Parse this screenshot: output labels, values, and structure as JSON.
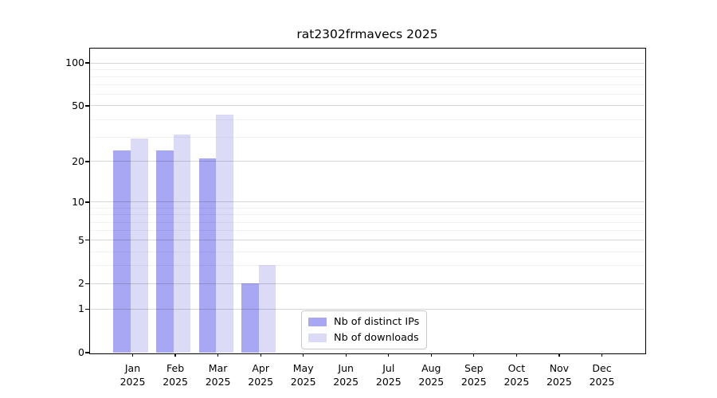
{
  "chart_data": {
    "type": "bar",
    "title": "rat2302frmavecs 2025",
    "x_categories": [
      "Jan",
      "Feb",
      "Mar",
      "Apr",
      "May",
      "Jun",
      "Jul",
      "Aug",
      "Sep",
      "Oct",
      "Nov",
      "Dec"
    ],
    "x_year": "2025",
    "series": [
      {
        "name": "Nb of distinct IPs",
        "color": "#a7a7f4",
        "values": [
          24,
          24,
          21,
          2,
          0,
          0,
          0,
          0,
          0,
          0,
          0,
          0
        ]
      },
      {
        "name": "Nb of downloads",
        "color": "#dbdbf8",
        "values": [
          29,
          31,
          43,
          3,
          0,
          0,
          0,
          0,
          0,
          0,
          0,
          0
        ]
      }
    ],
    "y_scale": "log10(1+x)",
    "ylim": [
      0,
      126
    ],
    "y_ticks_labeled": [
      100,
      50,
      20,
      10,
      5,
      2,
      1,
      0
    ],
    "y_minor_gridlines": [
      3,
      4,
      6,
      7,
      8,
      9,
      30,
      40,
      60,
      70,
      80,
      90
    ],
    "grid": "horizontal",
    "legend_position": "bottom-center",
    "axis_color": "#000000",
    "major_grid_color": "#d6d6d6",
    "minor_grid_color": "#f1f1f1"
  }
}
